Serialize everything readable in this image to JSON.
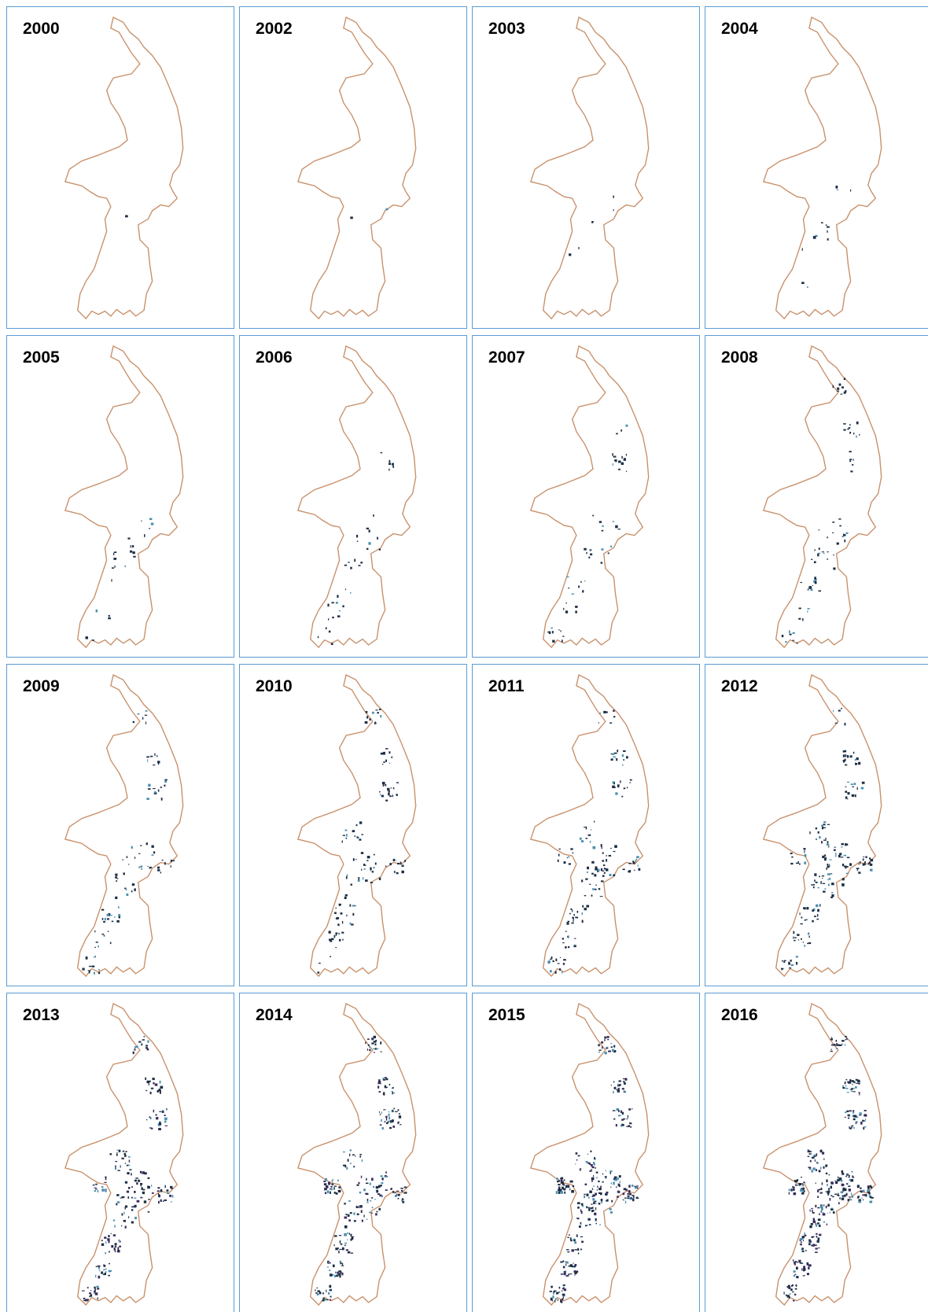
{
  "panels": [
    {
      "label": "2000"
    },
    {
      "label": "2002"
    },
    {
      "label": "2003"
    },
    {
      "label": "2004"
    },
    {
      "label": "2005"
    },
    {
      "label": "2006"
    },
    {
      "label": "2007"
    },
    {
      "label": "2008"
    },
    {
      "label": "2009"
    },
    {
      "label": "2010"
    },
    {
      "label": "2011"
    },
    {
      "label": "2012"
    },
    {
      "label": "2013"
    },
    {
      "label": "2014"
    },
    {
      "label": "2015"
    },
    {
      "label": "2016"
    }
  ]
}
